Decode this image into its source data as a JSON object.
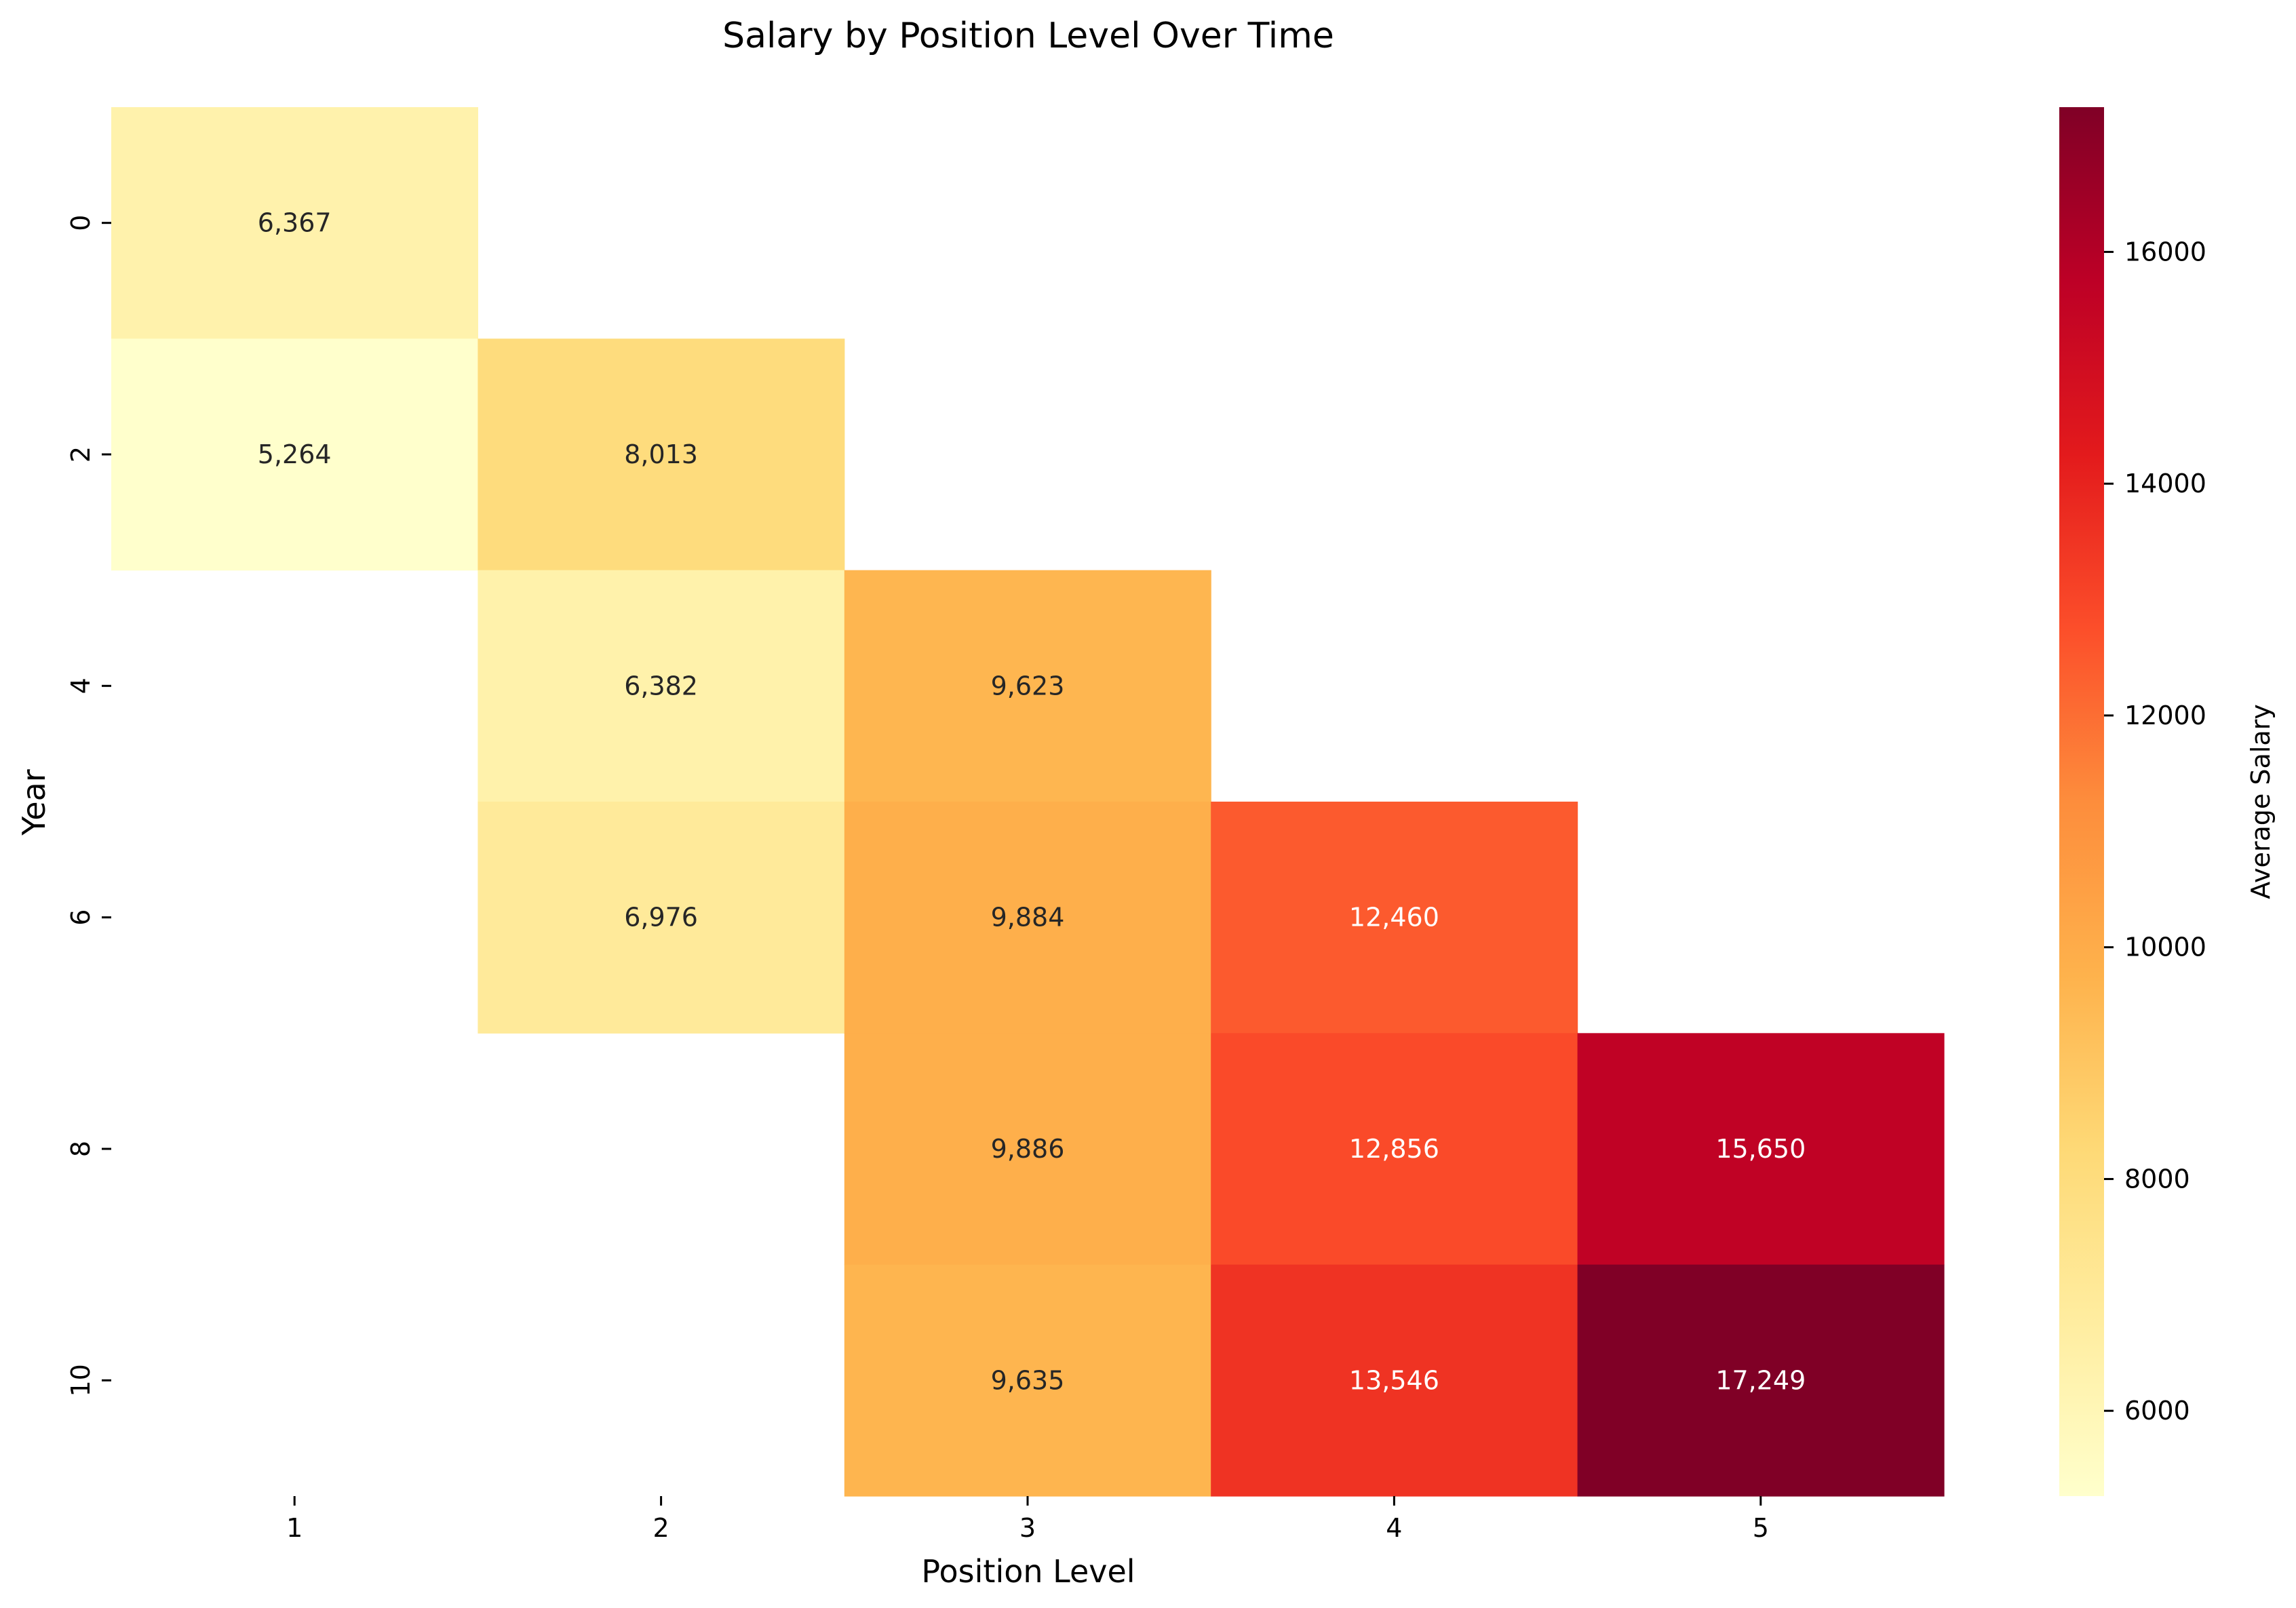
{
  "chart_data": {
    "type": "heatmap",
    "title": "Salary by Position Level Over Time",
    "xlabel": "Position Level",
    "ylabel": "Year",
    "x_categories": [
      "1",
      "2",
      "3",
      "4",
      "5"
    ],
    "y_categories": [
      "0",
      "2",
      "4",
      "6",
      "8",
      "10"
    ],
    "values": [
      [
        6367,
        null,
        null,
        null,
        null
      ],
      [
        5264,
        8013,
        null,
        null,
        null
      ],
      [
        null,
        6382,
        9623,
        null,
        null
      ],
      [
        null,
        6976,
        9884,
        12460,
        null
      ],
      [
        null,
        null,
        9886,
        12856,
        15650
      ],
      [
        null,
        null,
        9635,
        13546,
        17249
      ]
    ],
    "cell_labels": [
      [
        "6,367",
        "",
        "",
        "",
        ""
      ],
      [
        "5,264",
        "8,013",
        "",
        "",
        ""
      ],
      [
        "",
        "6,382",
        "9,623",
        "",
        ""
      ],
      [
        "",
        "6,976",
        "9,884",
        "12,460",
        ""
      ],
      [
        "",
        "",
        "9,886",
        "12,856",
        "15,650"
      ],
      [
        "",
        "",
        "9,635",
        "13,546",
        "17,249"
      ]
    ],
    "colorbar": {
      "label": "Average Salary",
      "colormap": "YlOrRd",
      "range": [
        5264,
        17249
      ],
      "ticks": [
        6000,
        8000,
        10000,
        12000,
        14000,
        16000
      ],
      "tick_labels": [
        "6000",
        "8000",
        "10000",
        "12000",
        "14000",
        "16000"
      ]
    },
    "colors": {
      "colormap_stops": [
        "#ffffcc",
        "#ffeda0",
        "#fed976",
        "#feb24c",
        "#fd8d3c",
        "#fc4e2a",
        "#e31a1c",
        "#bd0026",
        "#800026"
      ],
      "label_dark": "#262626",
      "label_light": "#ffffff"
    },
    "grid": false
  }
}
